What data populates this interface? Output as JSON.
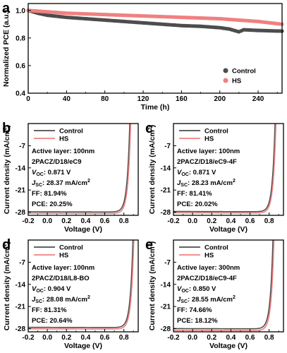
{
  "chart_data": [
    {
      "id": "a",
      "type": "scatter",
      "panel_label": "a",
      "xlabel": "Time (h)",
      "ylabel": "Normalized PCE (a.u.)",
      "xlim": [
        0,
        265
      ],
      "ylim": [
        0.4,
        1.05
      ],
      "xticks": [
        0,
        40,
        80,
        120,
        160,
        200,
        240
      ],
      "yticks": [
        0.4,
        0.6,
        0.8,
        1.0
      ],
      "ytick_labels": [
        "0.4",
        "0.6",
        "0.8",
        "1.0"
      ],
      "legend_position": "bottom-right",
      "series": [
        {
          "name": "Control",
          "color": "#4d4d4d",
          "points": [
            [
              0,
              1.0
            ],
            [
              10,
              0.98
            ],
            [
              20,
              0.965
            ],
            [
              40,
              0.95
            ],
            [
              60,
              0.94
            ],
            [
              80,
              0.93
            ],
            [
              100,
              0.92
            ],
            [
              120,
              0.91
            ],
            [
              140,
              0.9
            ],
            [
              160,
              0.89
            ],
            [
              180,
              0.885
            ],
            [
              200,
              0.875
            ],
            [
              210,
              0.865
            ],
            [
              220,
              0.845
            ],
            [
              225,
              0.86
            ],
            [
              240,
              0.855
            ],
            [
              265,
              0.85
            ]
          ]
        },
        {
          "name": "HS",
          "color": "#f08080",
          "points": [
            [
              0,
              1.0
            ],
            [
              10,
              0.995
            ],
            [
              20,
              0.99
            ],
            [
              40,
              0.98
            ],
            [
              60,
              0.975
            ],
            [
              80,
              0.97
            ],
            [
              100,
              0.965
            ],
            [
              120,
              0.96
            ],
            [
              140,
              0.955
            ],
            [
              160,
              0.95
            ],
            [
              180,
              0.945
            ],
            [
              200,
              0.94
            ],
            [
              220,
              0.93
            ],
            [
              240,
              0.92
            ],
            [
              265,
              0.9
            ]
          ]
        }
      ]
    },
    {
      "id": "b",
      "type": "line",
      "panel_label": "b",
      "xlabel": "Voltage (V)",
      "ylabel": "Current density (mA/cm",
      "ylabel_sup": "2",
      "ylabel_end": ")",
      "xlim": [
        -0.2,
        0.95
      ],
      "ylim": [
        -29,
        0
      ],
      "xticks": [
        -0.2,
        0.0,
        0.2,
        0.4,
        0.6,
        0.8
      ],
      "xtick_labels": [
        "-0.2",
        "0.0",
        "0.2",
        "0.4",
        "0.6",
        "0.8"
      ],
      "yticks": [
        -7,
        -14,
        -21,
        -28
      ],
      "ytick_labels": [
        "-7",
        "-14",
        "-21",
        "-28"
      ],
      "legend_position": "top-left",
      "annotation": {
        "layer": "Active layer: 100nm",
        "blend": "2PACZ/D18/eC9",
        "voc_sym": "V",
        "voc_sub": "OC",
        "voc_val": ": 0.871 V",
        "jsc_sym": "J",
        "jsc_sub": "SC",
        "jsc_val": ": 28.37 mA/cm",
        "jsc_sup": "2",
        "ff": "FF: 81.94%",
        "pce": "PCE: 20.25%"
      },
      "series": [
        {
          "name": "Control",
          "color": "#4d4d4d",
          "jsc": 27.9,
          "voc": 0.862
        },
        {
          "name": "HS",
          "color": "#f08080",
          "jsc": 28.37,
          "voc": 0.871
        }
      ]
    },
    {
      "id": "c",
      "type": "line",
      "panel_label": "c",
      "xlabel": "Voltage (V)",
      "ylabel": "Current density (mA/cm",
      "ylabel_sup": "2",
      "ylabel_end": ")",
      "xlim": [
        -0.2,
        0.95
      ],
      "ylim": [
        -29,
        0
      ],
      "xticks": [
        -0.2,
        0.0,
        0.2,
        0.4,
        0.6,
        0.8
      ],
      "xtick_labels": [
        "-0.2",
        "0.0",
        "0.2",
        "0.4",
        "0.6",
        "0.8"
      ],
      "yticks": [
        -7,
        -14,
        -21,
        -28
      ],
      "ytick_labels": [
        "-7",
        "-14",
        "-21",
        "-28"
      ],
      "legend_position": "top-left",
      "annotation": {
        "layer": "Active layer: 100nm",
        "blend": "2PACZ/D18/eC9-4F",
        "voc_sym": "V",
        "voc_sub": "OC",
        "voc_val": ": 0.871 V",
        "jsc_sym": "J",
        "jsc_sub": "SC",
        "jsc_val": ": 28.23 mA/cm",
        "jsc_sup": "2",
        "ff": "FF: 81.41%",
        "pce": "PCE: 20.02%"
      },
      "series": [
        {
          "name": "Control",
          "color": "#4d4d4d",
          "jsc": 27.8,
          "voc": 0.862
        },
        {
          "name": "HS",
          "color": "#f08080",
          "jsc": 28.23,
          "voc": 0.871
        }
      ]
    },
    {
      "id": "d",
      "type": "line",
      "panel_label": "d",
      "xlabel": "Voltage (V)",
      "ylabel": "Current density (mA/cm",
      "ylabel_sup": "2",
      "ylabel_end": ")",
      "xlim": [
        -0.2,
        0.95
      ],
      "ylim": [
        -29,
        0
      ],
      "xticks": [
        -0.2,
        0.0,
        0.2,
        0.4,
        0.6,
        0.8
      ],
      "xtick_labels": [
        "-0.2",
        "0.0",
        "0.2",
        "0.4",
        "0.6",
        "0.8"
      ],
      "yticks": [
        -7,
        -14,
        -21,
        -28
      ],
      "ytick_labels": [
        "-7",
        "-14",
        "-21",
        "-28"
      ],
      "legend_position": "top-left",
      "annotation": {
        "layer": "Active layer: 100nm",
        "blend": "2PACZ/D18/L8-BO",
        "voc_sym": "V",
        "voc_sub": "OC",
        "voc_val": ": 0.904 V",
        "jsc_sym": "J",
        "jsc_sub": "SC",
        "jsc_val": ": 28.08 mA/cm",
        "jsc_sup": "2",
        "ff": "FF: 81.31%",
        "pce": "PCE: 20.64%"
      },
      "series": [
        {
          "name": "Control",
          "color": "#4d4d4d",
          "jsc": 27.6,
          "voc": 0.895
        },
        {
          "name": "HS",
          "color": "#f08080",
          "jsc": 28.08,
          "voc": 0.904
        }
      ]
    },
    {
      "id": "e",
      "type": "line",
      "panel_label": "e",
      "xlabel": "Voltage (V)",
      "ylabel": "Current density (mA/cm",
      "ylabel_sup": "2",
      "ylabel_end": ")",
      "xlim": [
        -0.2,
        0.95
      ],
      "ylim": [
        -29,
        0
      ],
      "xticks": [
        -0.2,
        0.0,
        0.2,
        0.4,
        0.6,
        0.8
      ],
      "xtick_labels": [
        "-0.2",
        "0.0",
        "0.2",
        "0.4",
        "0.6",
        "0.8"
      ],
      "yticks": [
        -7,
        -14,
        -21,
        -28
      ],
      "ytick_labels": [
        "-7",
        "-14",
        "-21",
        "-28"
      ],
      "legend_position": "top-left",
      "annotation": {
        "layer": "Active layer: 300nm",
        "blend": "2PACZ/D18/eC9-4F",
        "voc_sym": "V",
        "voc_sub": "OC",
        "voc_val": ": 0.850 V",
        "jsc_sym": "J",
        "jsc_sub": "SC",
        "jsc_val": ": 28.55 mA/cm",
        "jsc_sup": "2",
        "ff": "FF: 74.66%",
        "pce": "PCE: 18.12%"
      },
      "series": [
        {
          "name": "Control",
          "color": "#4d4d4d",
          "jsc": 28.0,
          "voc": 0.84
        },
        {
          "name": "HS",
          "color": "#f08080",
          "jsc": 28.55,
          "voc": 0.85
        }
      ]
    }
  ]
}
